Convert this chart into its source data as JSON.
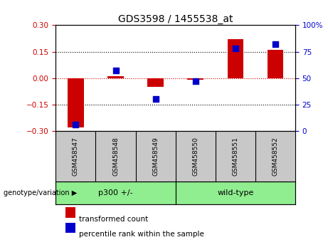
{
  "title": "GDS3598 / 1455538_at",
  "samples": [
    "GSM458547",
    "GSM458548",
    "GSM458549",
    "GSM458550",
    "GSM458551",
    "GSM458552"
  ],
  "red_values": [
    -0.28,
    0.01,
    -0.05,
    -0.01,
    0.22,
    0.16
  ],
  "blue_percentiles": [
    6,
    57,
    30,
    47,
    78,
    82
  ],
  "group_labels": [
    "p300 +/-",
    "wild-type"
  ],
  "group_colors": [
    "#90EE90",
    "#90EE90"
  ],
  "group_split": 3,
  "ylim_left": [
    -0.3,
    0.3
  ],
  "ylim_right": [
    0,
    100
  ],
  "yticks_left": [
    -0.3,
    -0.15,
    0,
    0.15,
    0.3
  ],
  "yticks_right": [
    0,
    25,
    50,
    75,
    100
  ],
  "red_color": "#CC0000",
  "blue_color": "#0000CC",
  "zero_line_color": "#CC0000",
  "bar_width": 0.4,
  "dot_size": 30,
  "legend_red": "transformed count",
  "legend_blue": "percentile rank within the sample",
  "xlabel_area_color": "#C8C8C8",
  "genotype_label": "genotype/variation"
}
